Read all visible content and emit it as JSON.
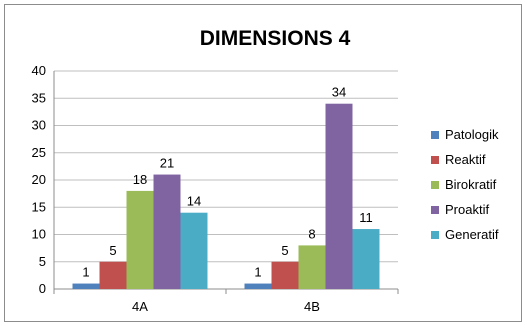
{
  "chart_data": {
    "type": "bar",
    "title": "DIMENSIONS 4",
    "xlabel": "",
    "ylabel": "",
    "categories": [
      "4A",
      "4B"
    ],
    "ylim": [
      0,
      40
    ],
    "yticks": [
      0,
      5,
      10,
      15,
      20,
      25,
      30,
      35,
      40
    ],
    "grid": true,
    "legend_position": "right",
    "series": [
      {
        "name": "Patologik",
        "color": "#4F81BD",
        "values": [
          1,
          1
        ]
      },
      {
        "name": "Reaktif",
        "color": "#C0504D",
        "values": [
          5,
          5
        ]
      },
      {
        "name": "Birokratif",
        "color": "#9BBB59",
        "values": [
          18,
          8
        ]
      },
      {
        "name": "Proaktif",
        "color": "#8064A2",
        "values": [
          21,
          34
        ]
      },
      {
        "name": "Generatif",
        "color": "#4BACC6",
        "values": [
          14,
          11
        ]
      }
    ]
  }
}
